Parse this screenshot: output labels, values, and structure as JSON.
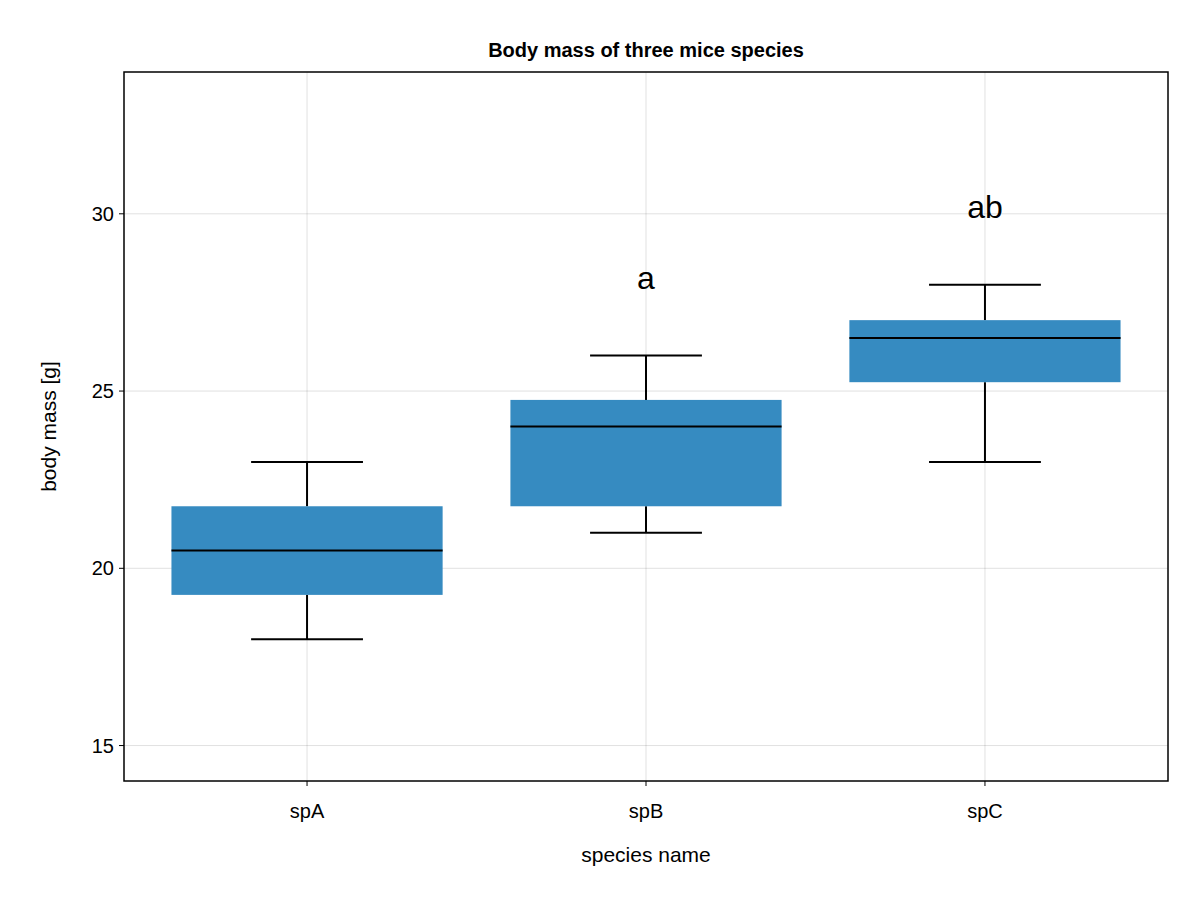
{
  "chart_data": {
    "type": "box",
    "title": "Body mass of three mice species",
    "x_label": "species name",
    "y_label": "body mass [g]",
    "categories": [
      "spA",
      "spB",
      "spC"
    ],
    "boxes": [
      {
        "min": 18,
        "q1": 19.25,
        "median": 20.5,
        "q3": 21.75,
        "max": 23
      },
      {
        "min": 21,
        "q1": 21.75,
        "median": 24,
        "q3": 24.75,
        "max": 26
      },
      {
        "min": 23,
        "q1": 25.25,
        "median": 26.5,
        "q3": 27,
        "max": 28
      }
    ],
    "annotations": [
      {
        "text": "a",
        "category": "spB",
        "y": 28.2
      },
      {
        "text": "ab",
        "category": "spC",
        "y": 30.2
      }
    ],
    "color": "#368bc1",
    "ylim": [
      14,
      34
    ],
    "yticks": [
      15,
      20,
      25,
      30
    ],
    "grid": true
  }
}
